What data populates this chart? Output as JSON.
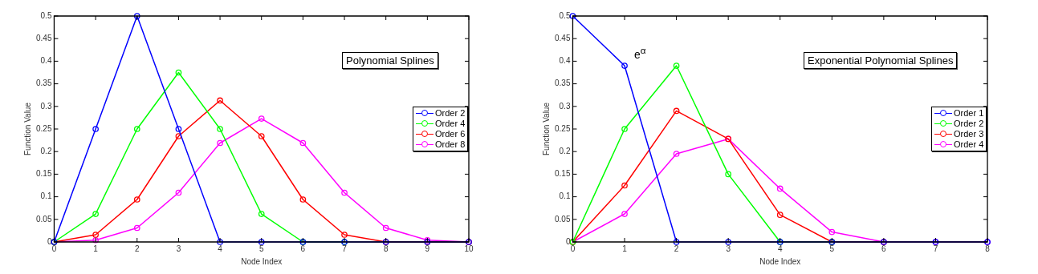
{
  "chart_data": [
    {
      "type": "line",
      "xlabel": "Node Index",
      "ylabel": "Function Value",
      "x": [
        0,
        1,
        2,
        3,
        4,
        5,
        6,
        7,
        8,
        9,
        10
      ],
      "xlim": [
        0,
        10
      ],
      "xticks": [
        0,
        1,
        2,
        3,
        4,
        5,
        6,
        7,
        8,
        9,
        10
      ],
      "ylim": [
        0,
        0.5
      ],
      "yticks": [
        0,
        0.05,
        0.1,
        0.15,
        0.2,
        0.25,
        0.3,
        0.35,
        0.4,
        0.45,
        0.5
      ],
      "grid": false,
      "legend": "right",
      "marker": "circle",
      "line_style": "solid",
      "annotations": [
        "Polynomial Splines"
      ],
      "series": [
        {
          "name": "Order 2",
          "color": "#0000ff",
          "values": [
            0,
            0.25,
            0.5,
            0.25,
            0,
            0,
            0,
            0,
            0,
            0,
            0
          ]
        },
        {
          "name": "Order 4",
          "color": "#00ff00",
          "values": [
            0,
            0.062,
            0.25,
            0.375,
            0.25,
            0.062,
            0,
            0,
            null,
            null,
            null
          ]
        },
        {
          "name": "Order 6",
          "color": "#ff0000",
          "values": [
            0,
            0.016,
            0.094,
            0.234,
            0.313,
            0.234,
            0.094,
            0.016,
            0,
            0,
            0
          ]
        },
        {
          "name": "Order 8",
          "color": "#ff00ff",
          "values": [
            0,
            0.004,
            0.031,
            0.109,
            0.219,
            0.273,
            0.219,
            0.109,
            0.031,
            0.004,
            0
          ]
        }
      ]
    },
    {
      "type": "line",
      "xlabel": "Node Index",
      "ylabel": "Function Value",
      "x": [
        0,
        1,
        2,
        3,
        4,
        5,
        6,
        7,
        8
      ],
      "xlim": [
        0,
        8
      ],
      "xticks": [
        0,
        1,
        2,
        3,
        4,
        5,
        6,
        7,
        8
      ],
      "ylim": [
        0,
        0.5
      ],
      "yticks": [
        0,
        0.05,
        0.1,
        0.15,
        0.2,
        0.25,
        0.3,
        0.35,
        0.4,
        0.45,
        0.5
      ],
      "grid": false,
      "legend": "right",
      "marker": "circle",
      "line_style": "solid",
      "annotations": [
        "Exponential Polynomial Splines",
        {
          "text": "e$^{α}$",
          "x": 1,
          "y": 0.39
        }
      ],
      "series": [
        {
          "name": "Order 1",
          "color": "#0000ff",
          "values": [
            0.5,
            0.39,
            0,
            0,
            0,
            0,
            0,
            0,
            0
          ]
        },
        {
          "name": "Order 2",
          "color": "#00ff00",
          "values": [
            0,
            0.25,
            0.39,
            0.15,
            0,
            0,
            null,
            null,
            null
          ]
        },
        {
          "name": "Order 3",
          "color": "#ff0000",
          "values": [
            0,
            0.125,
            0.29,
            0.228,
            0.06,
            0,
            0,
            null,
            null
          ]
        },
        {
          "name": "Order 4",
          "color": "#ff00ff",
          "values": [
            0,
            0.062,
            0.195,
            0.228,
            0.118,
            0.022,
            0,
            0,
            0
          ]
        }
      ]
    }
  ]
}
